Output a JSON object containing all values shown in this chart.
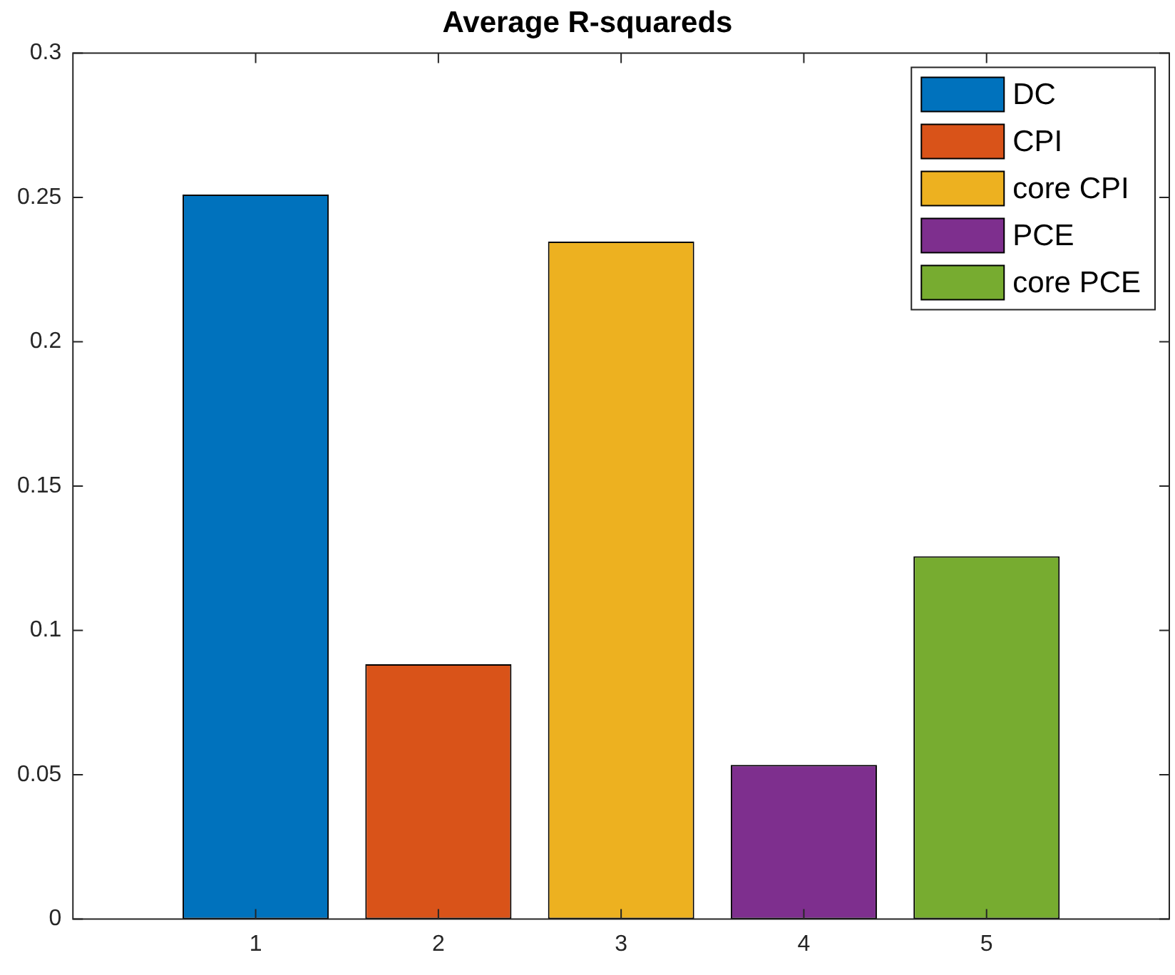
{
  "chart_data": {
    "type": "bar",
    "title": "Average R-squareds",
    "xlim": [
      0,
      6
    ],
    "xticks": [
      1,
      2,
      3,
      4,
      5
    ],
    "ylim": [
      0,
      0.3
    ],
    "yticks": [
      0,
      0.05,
      0.1,
      0.15,
      0.2,
      0.25,
      0.3
    ],
    "grid": false,
    "legend": "top right",
    "series": [
      {
        "name": "DC",
        "color": "#0072bd",
        "x": [
          1
        ],
        "values": [
          0.251
        ]
      },
      {
        "name": "CPI",
        "color": "#d95319",
        "x": [
          2
        ],
        "values": [
          0.0883
        ]
      },
      {
        "name": "core CPI",
        "color": "#edb120",
        "x": [
          3
        ],
        "values": [
          0.2347
        ]
      },
      {
        "name": "PCE",
        "color": "#7e2f8e",
        "x": [
          4
        ],
        "values": [
          0.0534
        ]
      },
      {
        "name": "core PCE",
        "color": "#77ac30",
        "x": [
          5
        ],
        "values": [
          0.1257
        ]
      }
    ]
  }
}
